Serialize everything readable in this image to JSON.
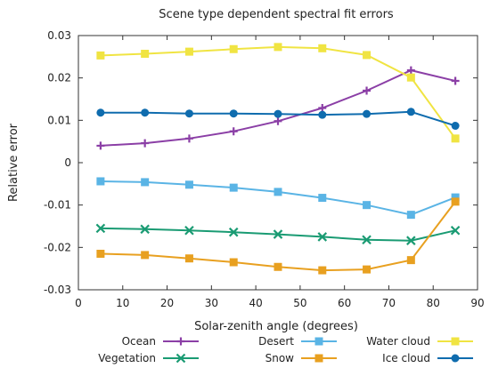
{
  "chart_data": {
    "type": "line",
    "title": "Scene type dependent spectral fit errors",
    "xlabel": "Solar-zenith angle (degrees)",
    "ylabel": "Relative error",
    "xlim": [
      0,
      90
    ],
    "ylim": [
      -0.03,
      0.03
    ],
    "xticks": [
      0,
      10,
      20,
      30,
      40,
      50,
      60,
      70,
      80,
      90
    ],
    "yticks": [
      -0.03,
      -0.02,
      -0.01,
      0,
      0.01,
      0.02,
      0.03
    ],
    "xtick_labels": [
      "0",
      "10",
      "20",
      "30",
      "40",
      "50",
      "60",
      "70",
      "80",
      "90"
    ],
    "ytick_labels": [
      "-0.03",
      "-0.02",
      "-0.01",
      "0",
      "0.01",
      "0.02",
      "0.03"
    ],
    "grid": false,
    "legend_position": "bottom",
    "x": [
      5,
      15,
      25,
      35,
      45,
      55,
      65,
      75,
      85
    ],
    "series": [
      {
        "name": "Ocean",
        "color": "#8B3FA6",
        "marker": "plus",
        "values": [
          0.004,
          0.0046,
          0.0057,
          0.0074,
          0.0098,
          0.0129,
          0.017,
          0.0218,
          0.0193
        ]
      },
      {
        "name": "Vegetation",
        "color": "#1A9B73",
        "marker": "cross",
        "values": [
          -0.0155,
          -0.0157,
          -0.016,
          -0.0164,
          -0.0169,
          -0.0175,
          -0.0182,
          -0.0184,
          -0.016
        ]
      },
      {
        "name": "Desert",
        "color": "#5AB4E5",
        "marker": "square",
        "values": [
          -0.0044,
          -0.0046,
          -0.0052,
          -0.0059,
          -0.0069,
          -0.0083,
          -0.01,
          -0.0123,
          -0.0082
        ]
      },
      {
        "name": "Snow",
        "color": "#E8A020",
        "marker": "square",
        "values": [
          -0.0215,
          -0.0218,
          -0.0226,
          -0.0235,
          -0.0246,
          -0.0254,
          -0.0252,
          -0.023,
          -0.0092
        ]
      },
      {
        "name": "Water cloud",
        "color": "#F0E442",
        "marker": "square",
        "values": [
          0.0253,
          0.0257,
          0.0262,
          0.0268,
          0.0273,
          0.027,
          0.0254,
          0.0201,
          0.0057
        ]
      },
      {
        "name": "Ice cloud",
        "color": "#0F6CAE",
        "marker": "circle",
        "values": [
          0.0118,
          0.0118,
          0.0116,
          0.0116,
          0.0115,
          0.0113,
          0.0115,
          0.012,
          0.0087
        ]
      }
    ]
  }
}
